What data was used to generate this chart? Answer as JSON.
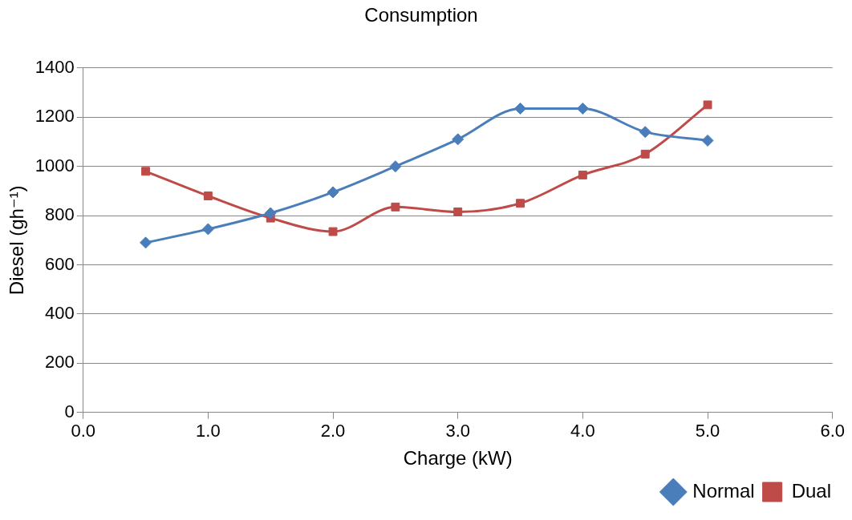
{
  "chart_data": {
    "type": "line",
    "title": "Consumption",
    "xlabel": "Charge (kW)",
    "ylabel": "Diesel (gh⁻¹)",
    "x": [
      0.5,
      1.0,
      1.5,
      2.0,
      2.5,
      3.0,
      3.5,
      4.0,
      4.5,
      5.0
    ],
    "series": [
      {
        "name": "Normal",
        "color": "#4a7ebb",
        "marker": "diamond",
        "values": [
          690,
          745,
          810,
          895,
          1000,
          1110,
          1235,
          1235,
          1140,
          1105
        ]
      },
      {
        "name": "Dual",
        "color": "#be4b48",
        "marker": "square",
        "values": [
          980,
          880,
          790,
          735,
          835,
          815,
          850,
          965,
          1050,
          1250
        ]
      }
    ],
    "xlim": [
      0,
      6
    ],
    "xticks": [
      {
        "value": 0,
        "label": "0.0"
      },
      {
        "value": 1,
        "label": "1.0"
      },
      {
        "value": 2,
        "label": "2.0"
      },
      {
        "value": 3,
        "label": "3.0"
      },
      {
        "value": 4,
        "label": "4.0"
      },
      {
        "value": 5,
        "label": "5.0"
      },
      {
        "value": 6,
        "label": "6.0"
      }
    ],
    "ylim": [
      0,
      1400
    ],
    "yticks": [
      0,
      200,
      400,
      600,
      800,
      1000,
      1200,
      1400
    ],
    "grid": "y",
    "legend": "bottom right"
  }
}
